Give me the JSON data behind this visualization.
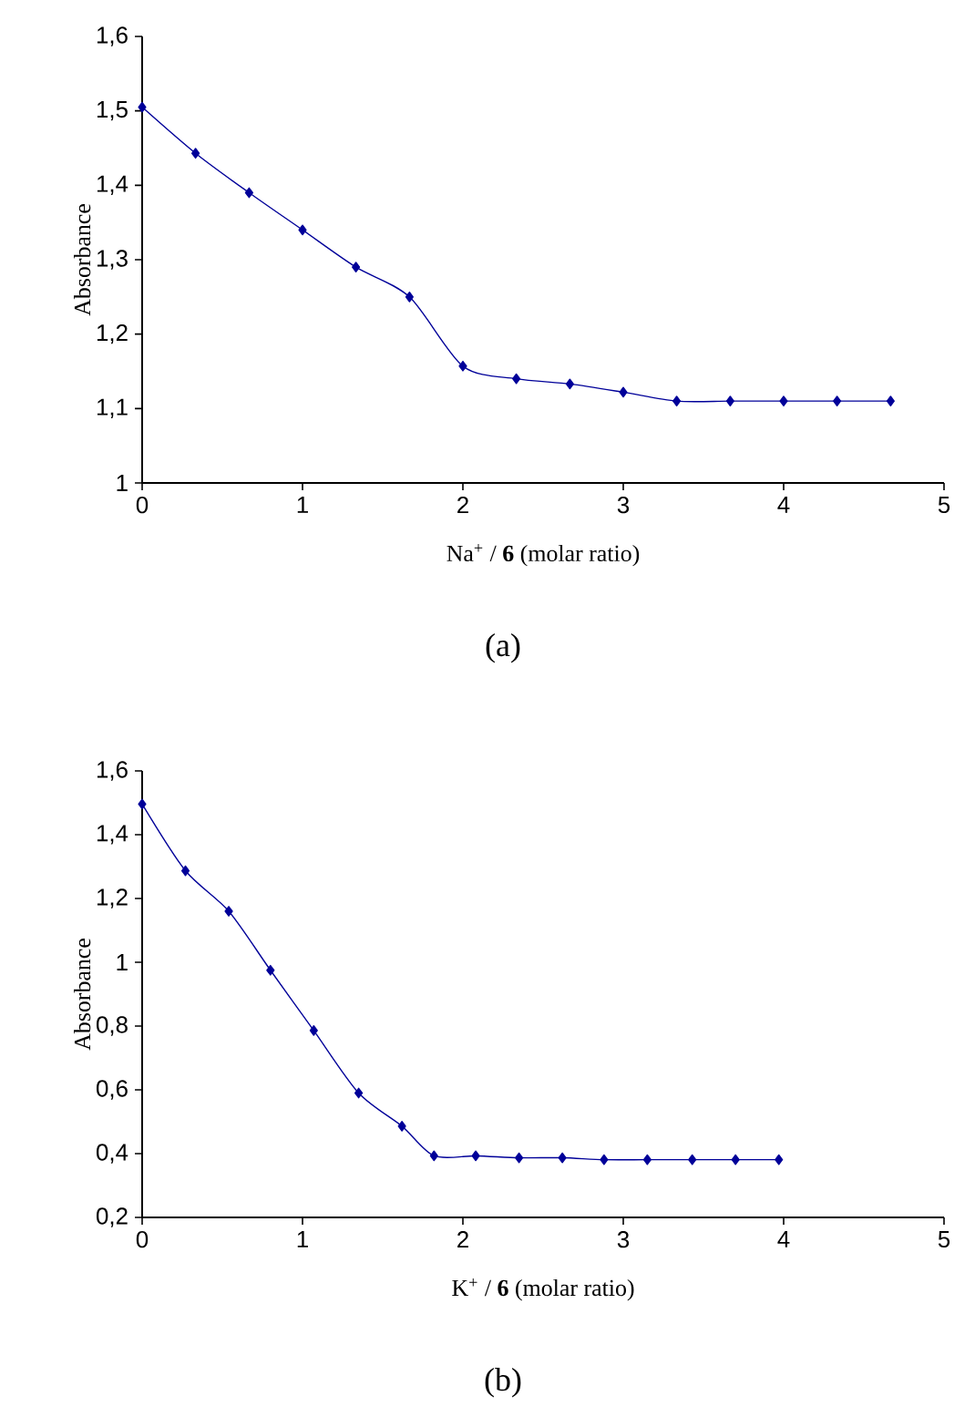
{
  "chart_data": [
    {
      "type": "line",
      "xlabel": "Na$^{+}$ / **6** (molar ratio)",
      "ylabel": "Absorbance",
      "annotations": [
        "(a)"
      ],
      "marker": "diamond",
      "line_style": "solid",
      "xlim": [
        0,
        5
      ],
      "xticks": [
        0,
        1,
        2,
        3,
        4,
        5
      ],
      "ylim": [
        1,
        1.6
      ],
      "yticks": [
        1,
        {
          "value": 1.1,
          "label": "1,1"
        },
        {
          "value": 1.2,
          "label": "1,2"
        },
        {
          "value": 1.3,
          "label": "1,3"
        },
        {
          "value": 1.4,
          "label": "1,4"
        },
        {
          "value": 1.5,
          "label": "1,5"
        },
        {
          "value": 1.6,
          "label": "1,6"
        }
      ],
      "series": [
        {
          "color": "#000099",
          "x": [
            0,
            0.333,
            0.667,
            1,
            1.333,
            1.667,
            2,
            2.333,
            2.667,
            3,
            3.333,
            3.667,
            4,
            4.333,
            4.667
          ],
          "values": [
            1.505,
            1.443,
            1.39,
            1.34,
            1.29,
            1.25,
            1.157,
            1.14,
            1.133,
            1.122,
            1.11,
            1.11,
            1.11,
            1.11,
            1.11
          ]
        }
      ]
    },
    {
      "type": "line",
      "xlabel": "K$^{+}$ / **6** (molar ratio)",
      "ylabel": "Absorbance",
      "annotations": [
        "(b)"
      ],
      "marker": "diamond",
      "line_style": "solid",
      "xlim": [
        0,
        5
      ],
      "xticks": [
        0,
        1,
        2,
        3,
        4,
        5
      ],
      "ylim": [
        0.2,
        1.6
      ],
      "yticks": [
        {
          "value": 0.2,
          "label": "0,2"
        },
        {
          "value": 0.4,
          "label": "0,4"
        },
        {
          "value": 0.6,
          "label": "0,6"
        },
        {
          "value": 0.8,
          "label": "0,8"
        },
        1,
        {
          "value": 1.2,
          "label": "1,2"
        },
        {
          "value": 1.4,
          "label": "1,4"
        },
        {
          "value": 1.6,
          "label": "1,6"
        }
      ],
      "series": [
        {
          "color": "#000099",
          "x": [
            0,
            0.27,
            0.54,
            0.8,
            1.07,
            1.35,
            1.62,
            1.82,
            2.08,
            2.35,
            2.62,
            2.88,
            3.15,
            3.43,
            3.7,
            3.97
          ],
          "values": [
            1.496,
            1.287,
            1.16,
            0.975,
            0.786,
            0.59,
            0.486,
            0.393,
            0.393,
            0.387,
            0.387,
            0.381,
            0.381,
            0.381,
            0.381,
            0.381
          ]
        }
      ]
    }
  ]
}
